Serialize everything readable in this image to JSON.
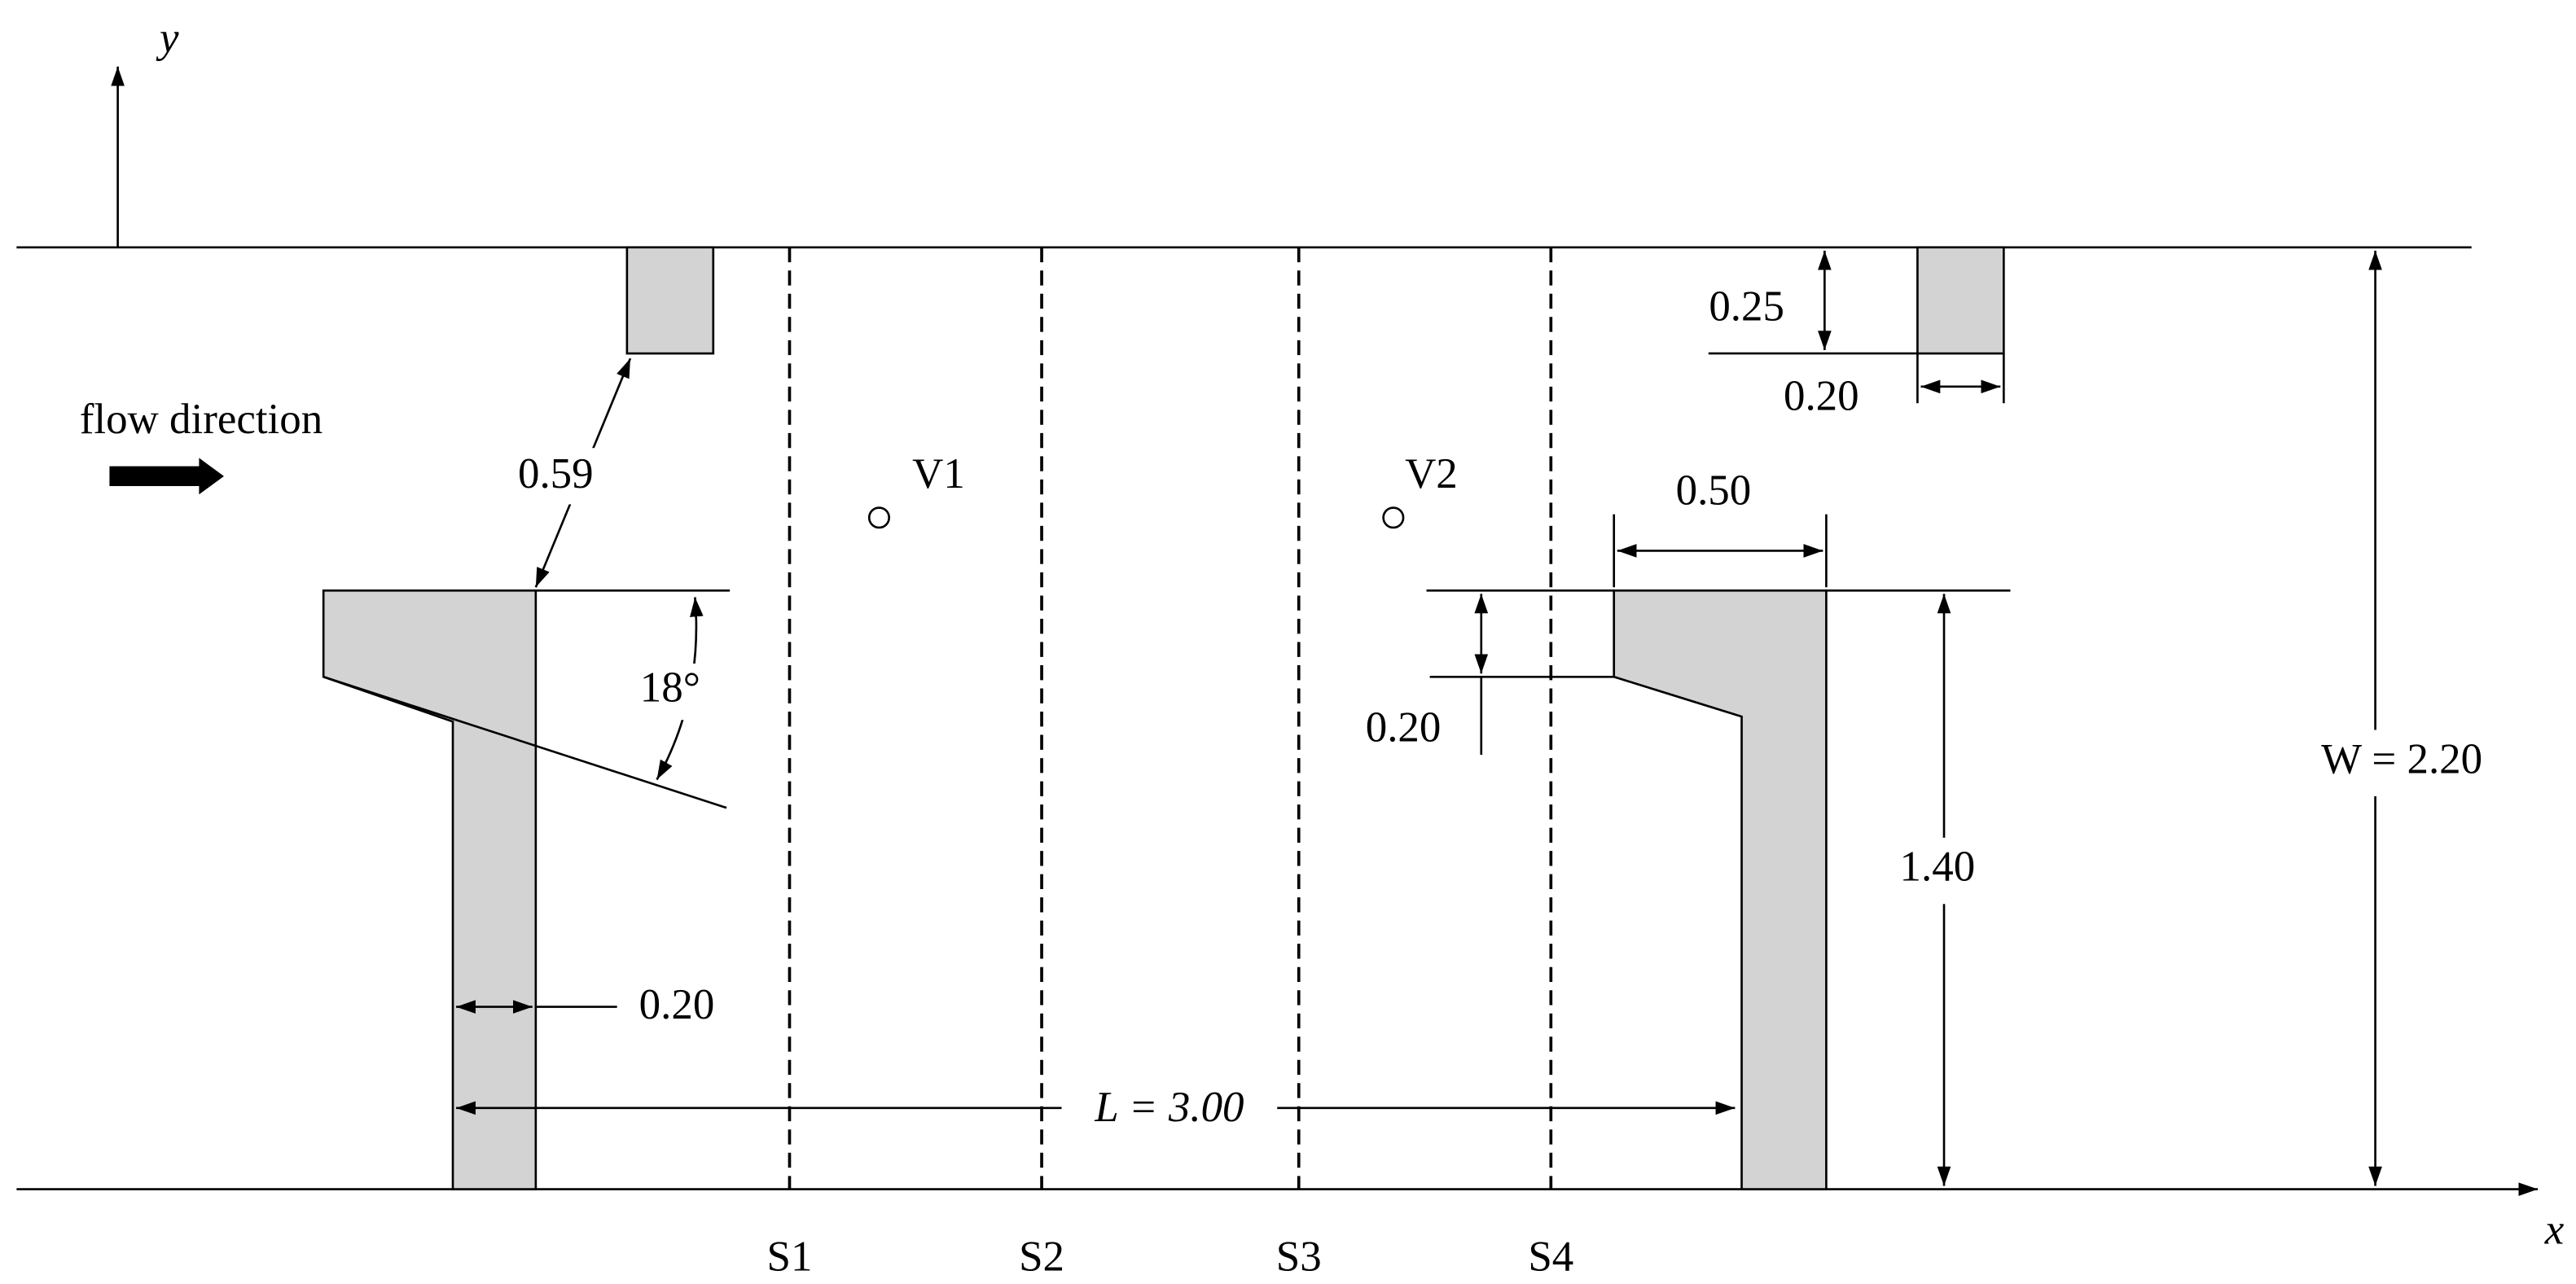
{
  "axes": {
    "y": "y",
    "x": "x"
  },
  "flow_label": "flow direction",
  "sections": [
    "S1",
    "S2",
    "S3",
    "S4"
  ],
  "probes": [
    "V1",
    "V2"
  ],
  "dimensions": {
    "gap": "0.59",
    "angle": "18°",
    "groyne_width": "0.20",
    "spur_depth": "0.25",
    "spur_width": "0.20",
    "head_length": "0.50",
    "head_offset": "0.20",
    "groyne_length": "1.40",
    "channel_width": "W = 2.20",
    "spacing": "L = 3.00"
  }
}
